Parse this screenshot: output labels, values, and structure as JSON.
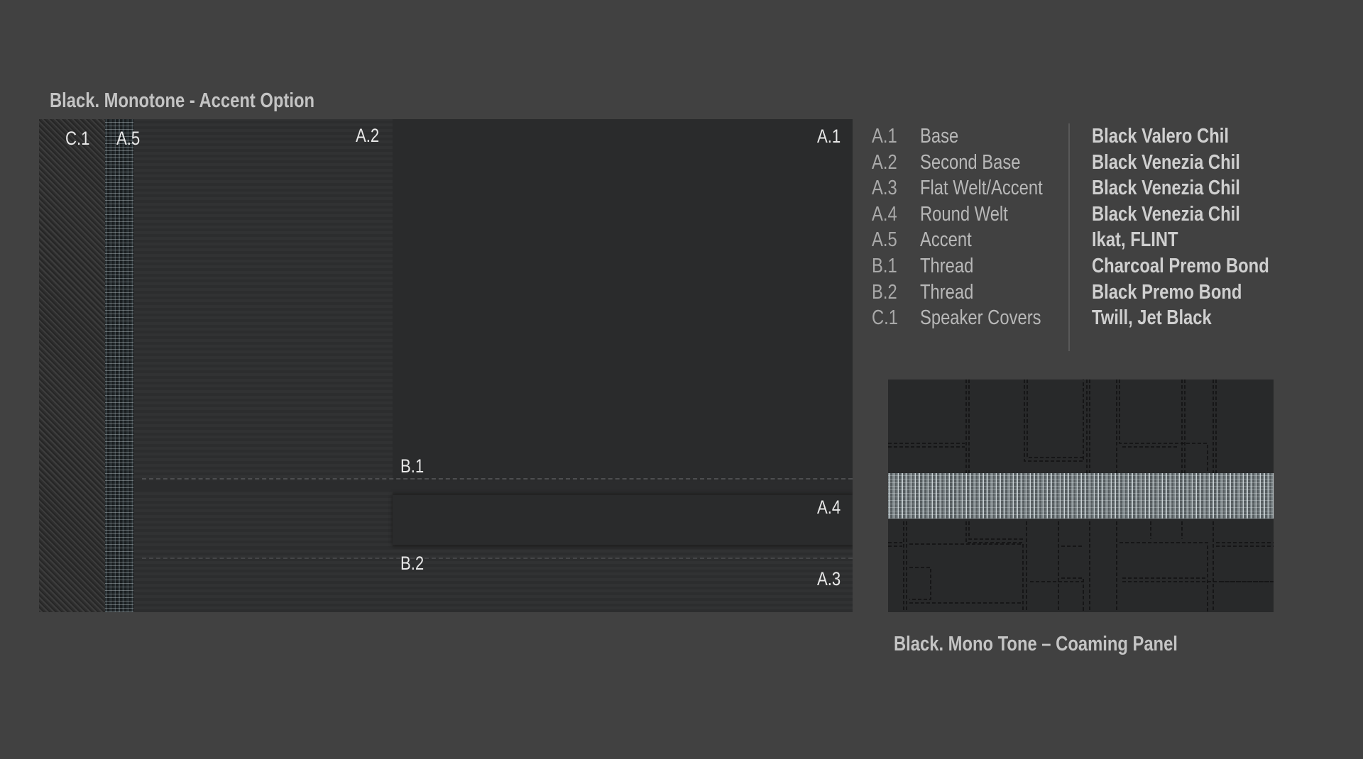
{
  "title": "Black. Monotone - Accent Option",
  "swatch_labels": {
    "c1": "C.1",
    "a5": "A.5",
    "a2": "A.2",
    "a1": "A.1",
    "b1": "B.1",
    "a4": "A.4",
    "b2": "B.2",
    "a3": "A.3"
  },
  "legend": [
    {
      "code": "A.1",
      "name": "Base",
      "material": "Black Valero Chil"
    },
    {
      "code": "A.2",
      "name": "Second Base",
      "material": "Black Venezia Chil"
    },
    {
      "code": "A.3",
      "name": "Flat Welt/Accent",
      "material": "Black Venezia Chil"
    },
    {
      "code": "A.4",
      "name": "Round Welt",
      "material": "Black Venezia Chil"
    },
    {
      "code": "A.5",
      "name": "Accent",
      "material": "Ikat, FLINT"
    },
    {
      "code": "B.1",
      "name": "Thread",
      "material": "Charcoal Premo Bond"
    },
    {
      "code": "B.2",
      "name": "Thread",
      "material": "Black Premo Bond"
    },
    {
      "code": "C.1",
      "name": "Speaker Covers",
      "material": "Twill, Jet Black"
    }
  ],
  "caption": "Black. Mono Tone – Coaming Panel",
  "colors": {
    "background": "#414141",
    "leather": "#2b2c2d",
    "accent_fabric": "#8a9396"
  }
}
